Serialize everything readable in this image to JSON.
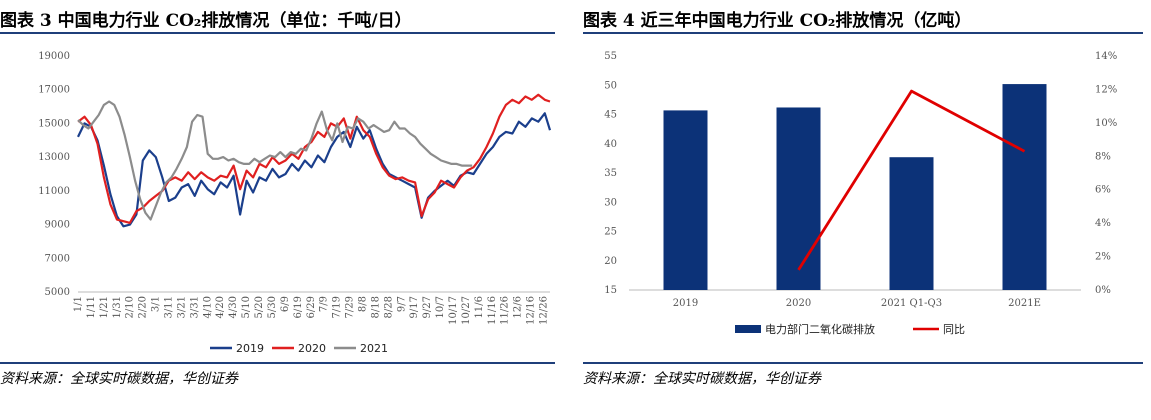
{
  "left": {
    "title_prefix": "图表 3",
    "title": "中国电力行业 CO₂排放情况（单位：千吨/日）",
    "source": "资料来源：全球实时碳数据，华创证券",
    "chart_data": {
      "type": "line",
      "title": "中国电力行业 CO₂排放情况（单位：千吨/日）",
      "xlabel": "",
      "ylabel": "",
      "ylim": [
        5000,
        19000
      ],
      "yticks": [
        "5000",
        "7000",
        "9000",
        "11000",
        "13000",
        "15000",
        "17000",
        "19000"
      ],
      "yvalues": [
        5000,
        7000,
        9000,
        11000,
        13000,
        15000,
        17000,
        19000
      ],
      "xticks": [
        "1/1",
        "1/11",
        "1/21",
        "1/31",
        "2/10",
        "2/20",
        "3/1",
        "3/11",
        "3/21",
        "3/31",
        "4/10",
        "4/20",
        "4/30",
        "5/10",
        "5/20",
        "5/30",
        "6/9",
        "6/19",
        "6/29",
        "7/9",
        "7/19",
        "7/29",
        "8/8",
        "8/18",
        "8/28",
        "9/7",
        "9/17",
        "9/27",
        "10/7",
        "10/17",
        "10/27",
        "11/6",
        "11/16",
        "11/26",
        "12/6",
        "12/16",
        "12/26"
      ],
      "grid": false,
      "legend": "bottom",
      "series": [
        {
          "name": "2019",
          "color": "#1b3f8c",
          "x": [
            0,
            5,
            10,
            15,
            20,
            25,
            30,
            35,
            40,
            45,
            50,
            55,
            60,
            65,
            70,
            75,
            80,
            85,
            90,
            95,
            100,
            105,
            110,
            115,
            120,
            125,
            130,
            135,
            140,
            145,
            150,
            155,
            160,
            165,
            170,
            175,
            180,
            185,
            190,
            195,
            200,
            205,
            210,
            215,
            220,
            225,
            230,
            235,
            240,
            245,
            250,
            255,
            260,
            265,
            270,
            275,
            280,
            285,
            290,
            295,
            300,
            305,
            310,
            315,
            320,
            325,
            330,
            335,
            340,
            345,
            350,
            355,
            360,
            364
          ],
          "y": [
            14200,
            15000,
            14800,
            14000,
            12500,
            10800,
            9500,
            8900,
            9000,
            9600,
            12800,
            13400,
            13000,
            11800,
            10400,
            10600,
            11200,
            11400,
            10700,
            11600,
            11100,
            10800,
            11500,
            11200,
            11900,
            9600,
            11600,
            10900,
            11800,
            11600,
            12300,
            11800,
            12000,
            12600,
            12200,
            12800,
            12400,
            13100,
            12700,
            13600,
            14200,
            14500,
            13600,
            14800,
            14100,
            14600,
            13500,
            12600,
            12000,
            11800,
            11600,
            11400,
            11200,
            9400,
            10600,
            11000,
            11300,
            11600,
            11300,
            11900,
            12100,
            12000,
            12600,
            13200,
            13600,
            14200,
            14500,
            14400,
            15100,
            14800,
            15300,
            15100,
            15600,
            14600
          ]
        },
        {
          "name": "2020",
          "color": "#e02020",
          "x": [
            0,
            5,
            10,
            15,
            20,
            25,
            30,
            35,
            40,
            45,
            50,
            55,
            60,
            65,
            70,
            75,
            80,
            85,
            90,
            95,
            100,
            105,
            110,
            115,
            120,
            125,
            130,
            135,
            140,
            145,
            150,
            155,
            160,
            165,
            170,
            175,
            180,
            185,
            190,
            195,
            200,
            205,
            210,
            215,
            220,
            225,
            230,
            235,
            240,
            245,
            250,
            255,
            260,
            265,
            270,
            275,
            280,
            285,
            290,
            295,
            300,
            305,
            310,
            315,
            320,
            325,
            330,
            335,
            340,
            345,
            350,
            355,
            360,
            364
          ],
          "y": [
            15100,
            15400,
            14900,
            13800,
            11800,
            10200,
            9300,
            9200,
            9100,
            9800,
            10000,
            10400,
            10700,
            11000,
            11600,
            11800,
            11600,
            12100,
            11700,
            12100,
            11800,
            11600,
            11900,
            11800,
            12500,
            11100,
            12200,
            11800,
            12600,
            12400,
            13000,
            12600,
            12800,
            13200,
            12900,
            13600,
            13900,
            14500,
            14200,
            15000,
            14800,
            15300,
            14100,
            15400,
            14600,
            14200,
            13200,
            12400,
            11900,
            11700,
            11800,
            11600,
            11500,
            9500,
            10500,
            10900,
            11600,
            11400,
            11200,
            11800,
            12200,
            12400,
            12900,
            13600,
            14400,
            15400,
            16100,
            16400,
            16200,
            16600,
            16400,
            16700,
            16400,
            16300
          ]
        },
        {
          "name": "2021",
          "color": "#8c8c8c",
          "x": [
            0,
            4,
            8,
            12,
            16,
            20,
            24,
            28,
            32,
            36,
            40,
            44,
            48,
            52,
            56,
            60,
            64,
            68,
            72,
            76,
            80,
            84,
            88,
            92,
            96,
            100,
            104,
            108,
            112,
            116,
            120,
            124,
            128,
            132,
            136,
            140,
            144,
            148,
            152,
            156,
            160,
            164,
            168,
            172,
            176,
            180,
            184,
            188,
            192,
            196,
            200,
            204,
            208,
            212,
            216,
            220,
            224,
            228,
            232,
            236,
            240,
            244,
            248,
            252,
            256,
            260,
            264,
            268,
            272,
            276,
            280,
            284,
            288,
            292,
            296,
            300,
            304
          ],
          "y": [
            15200,
            14900,
            14700,
            15100,
            15500,
            16100,
            16300,
            16100,
            15400,
            14300,
            13000,
            11600,
            10500,
            9700,
            9300,
            10100,
            10900,
            11500,
            11800,
            12300,
            12900,
            13600,
            15100,
            15500,
            15400,
            13200,
            12900,
            12900,
            13000,
            12800,
            12900,
            12700,
            12600,
            12600,
            12900,
            12700,
            12900,
            13100,
            13000,
            13300,
            13000,
            13300,
            13200,
            13500,
            13400,
            14100,
            15000,
            15700,
            14600,
            14000,
            15000,
            13900,
            14800,
            14700,
            15300,
            15100,
            14700,
            14900,
            14700,
            14500,
            14600,
            15100,
            14700,
            14700,
            14400,
            14200,
            13800,
            13500,
            13200,
            13000,
            12800,
            12700,
            12600,
            12600,
            12500,
            12500,
            12500
          ]
        }
      ]
    }
  },
  "right": {
    "title_prefix": "图表 4",
    "title": "近三年中国电力行业 CO₂排放情况（亿吨）",
    "source": "资料来源：全球实时碳数据，华创证券",
    "chart_data": {
      "type": "bar",
      "title": "近三年中国电力行业 CO₂排放情况（亿吨）",
      "categories": [
        "2019",
        "2020",
        "2021  Q1-Q3",
        "2021E"
      ],
      "ylim": [
        15,
        55
      ],
      "yticks": [
        "15",
        "20",
        "25",
        "30",
        "35",
        "40",
        "45",
        "50",
        "55"
      ],
      "yvalues": [
        15,
        20,
        25,
        30,
        35,
        40,
        45,
        50,
        55
      ],
      "y2lim": [
        0,
        14
      ],
      "y2ticks": [
        "0%",
        "2%",
        "4%",
        "6%",
        "8%",
        "10%",
        "12%",
        "14%"
      ],
      "y2values": [
        0,
        2,
        4,
        6,
        8,
        10,
        12,
        14
      ],
      "grid": false,
      "legend": "bottom",
      "series": [
        {
          "name": "电力部门二氧化碳排放",
          "type": "bar",
          "color": "#0c3278",
          "axis": "left",
          "values": [
            45.7,
            46.2,
            37.7,
            50.2
          ]
        },
        {
          "name": "同比",
          "type": "line",
          "color": "#e00000",
          "axis": "right",
          "values": [
            null,
            1.2,
            11.9,
            8.3
          ]
        }
      ]
    }
  }
}
